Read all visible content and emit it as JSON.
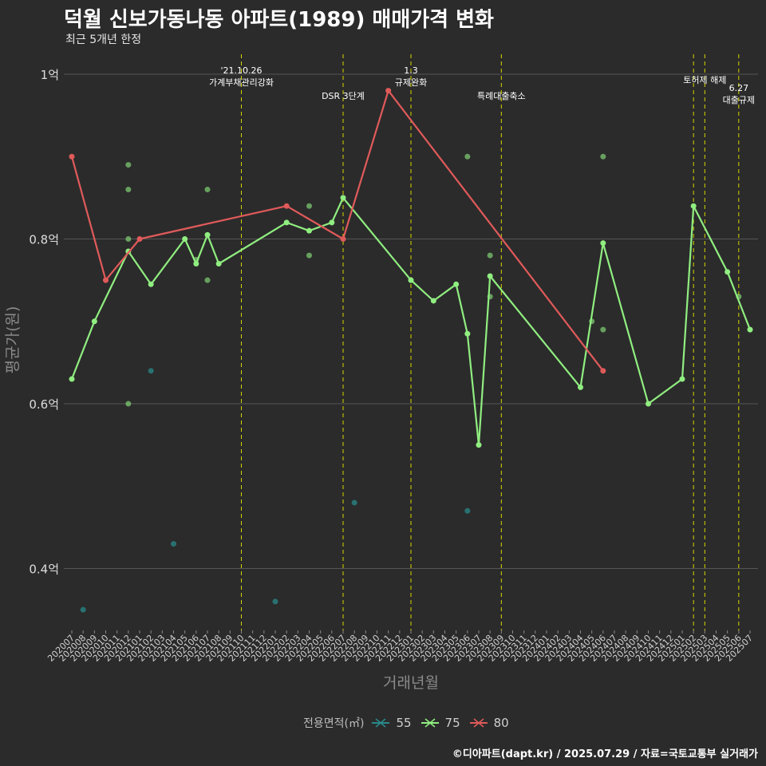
{
  "header": {
    "title": "덕월 신보가동나동 아파트(1989) 매매가격 변화",
    "subtitle": "최근 5개년 한정"
  },
  "footer": {
    "caption": "©디아파트(dapt.kr) / 2025.07.29 / 자료=국토교통부 실거래가"
  },
  "legend": {
    "title": "전용면적(㎡)",
    "items": [
      {
        "label": "55",
        "color": "#2a8a8a"
      },
      {
        "label": "75",
        "color": "#90ee80"
      },
      {
        "label": "80",
        "color": "#e05a5a"
      }
    ]
  },
  "colors": {
    "background": "#2b2b2b",
    "grid": "#555555",
    "event_line": "#d4d400",
    "series_55": "#2a8a8a",
    "series_75": "#90ee80",
    "series_80": "#e05a5a"
  },
  "chart_data": {
    "type": "line",
    "title": "덕월 신보가동나동 아파트(1989) 매매가격 변화",
    "subtitle": "최근 5개년 한정",
    "xlabel": "거래년월",
    "ylabel": "평균가(원)",
    "grid": true,
    "legend_position": "bottom",
    "ylim": [
      0.325,
      1.03
    ],
    "y_ticks": [
      {
        "value": 0.4,
        "label": "0.4억"
      },
      {
        "value": 0.6,
        "label": "0.6억"
      },
      {
        "value": 0.8,
        "label": "0.8억"
      },
      {
        "value": 1.0,
        "label": "1억"
      }
    ],
    "x_categories": [
      "202007",
      "202008",
      "202009",
      "202010",
      "202011",
      "202012",
      "202101",
      "202102",
      "202103",
      "202104",
      "202105",
      "202106",
      "202107",
      "202108",
      "202109",
      "202110",
      "202111",
      "202112",
      "202201",
      "202202",
      "202203",
      "202204",
      "202205",
      "202206",
      "202207",
      "202208",
      "202209",
      "202210",
      "202211",
      "202212",
      "202301",
      "202302",
      "202303",
      "202304",
      "202305",
      "202306",
      "202307",
      "202308",
      "202309",
      "202310",
      "202311",
      "202312",
      "202401",
      "202402",
      "202403",
      "202404",
      "202405",
      "202406",
      "202407",
      "202408",
      "202409",
      "202410",
      "202411",
      "202412",
      "202501",
      "202502",
      "202503",
      "202504",
      "202505",
      "202506",
      "202507"
    ],
    "series": [
      {
        "name": "55",
        "line": [],
        "points": [
          [
            "202008",
            0.35
          ],
          [
            "202102",
            0.64
          ],
          [
            "202104",
            0.43
          ],
          [
            "202201",
            0.36
          ],
          [
            "202208",
            0.48
          ],
          [
            "202306",
            0.47
          ]
        ]
      },
      {
        "name": "75",
        "line": [
          [
            "202007",
            0.63
          ],
          [
            "202009",
            0.7
          ],
          [
            "202012",
            0.785
          ],
          [
            "202102",
            0.745
          ],
          [
            "202105",
            0.8
          ],
          [
            "202106",
            0.77
          ],
          [
            "202107",
            0.805
          ],
          [
            "202108",
            0.77
          ],
          [
            "202202",
            0.82
          ],
          [
            "202204",
            0.81
          ],
          [
            "202206",
            0.82
          ],
          [
            "202207",
            0.85
          ],
          [
            "202301",
            0.75
          ],
          [
            "202303",
            0.725
          ],
          [
            "202305",
            0.745
          ],
          [
            "202306",
            0.685
          ],
          [
            "202307",
            0.55
          ],
          [
            "202308",
            0.755
          ],
          [
            "202404",
            0.62
          ],
          [
            "202406",
            0.795
          ],
          [
            "202410",
            0.6
          ],
          [
            "202501",
            0.63
          ],
          [
            "202502",
            0.84
          ],
          [
            "202505",
            0.76
          ],
          [
            "202507",
            0.69
          ]
        ],
        "points": [
          [
            "202012",
            0.89
          ],
          [
            "202012",
            0.86
          ],
          [
            "202012",
            0.8
          ],
          [
            "202012",
            0.6
          ],
          [
            "202106",
            0.775
          ],
          [
            "202107",
            0.86
          ],
          [
            "202107",
            0.75
          ],
          [
            "202204",
            0.84
          ],
          [
            "202204",
            0.78
          ],
          [
            "202306",
            0.9
          ],
          [
            "202308",
            0.78
          ],
          [
            "202308",
            0.73
          ],
          [
            "202405",
            0.7
          ],
          [
            "202406",
            0.9
          ],
          [
            "202406",
            0.69
          ],
          [
            "202506",
            0.73
          ]
        ]
      },
      {
        "name": "80",
        "line": [
          [
            "202007",
            0.9
          ],
          [
            "202010",
            0.75
          ],
          [
            "202101",
            0.8
          ],
          [
            "202202",
            0.84
          ],
          [
            "202207",
            0.8
          ],
          [
            "202211",
            0.98
          ],
          [
            "202406",
            0.64
          ]
        ],
        "points": []
      }
    ],
    "annotations": [
      {
        "x": "202110",
        "lines": [
          "'21.10.26",
          "가계부채관리강화"
        ],
        "row": 1
      },
      {
        "x": "202207",
        "lines": [
          "DSR 3단계"
        ],
        "row": 3
      },
      {
        "x": "202301",
        "lines": [
          "1.3",
          "규제완화"
        ],
        "row": 1
      },
      {
        "x": "202309",
        "lines": [
          "특례대출축소"
        ],
        "row": 3
      },
      {
        "x": "202502",
        "lines": [],
        "row": 0
      },
      {
        "x": "202503",
        "lines": [
          "토허제 해제"
        ],
        "row": 2
      },
      {
        "x": "202506",
        "lines": [
          "6.27",
          "대출규제"
        ],
        "row": 4
      }
    ]
  }
}
